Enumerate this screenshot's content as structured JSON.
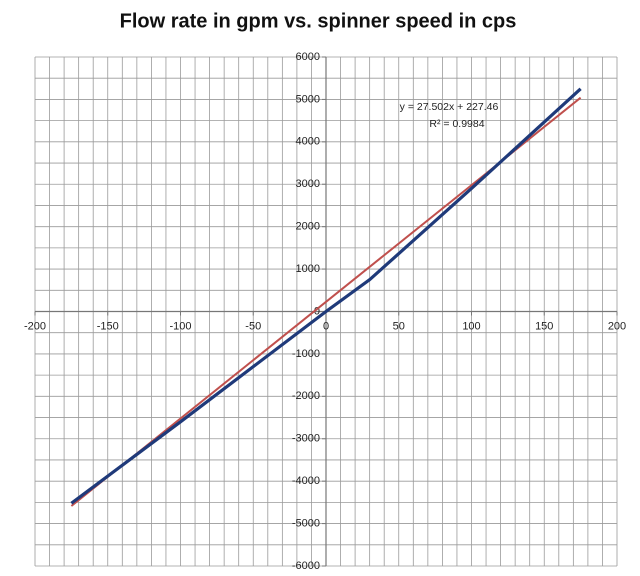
{
  "chart_data": {
    "type": "line",
    "title": "Flow rate in gpm vs. spinner speed in cps",
    "annotations": [
      "y = 27.502x + 227.46",
      "R² = 0.9984"
    ],
    "xlim": [
      -200,
      200
    ],
    "xticks": [
      -200,
      -150,
      -100,
      -50,
      0,
      50,
      100,
      150,
      200
    ],
    "ylim": [
      -6000,
      6000
    ],
    "yticks": [
      -6000,
      -5000,
      -4000,
      -3000,
      -2000,
      -1000,
      0,
      1000,
      2000,
      3000,
      4000,
      5000,
      6000
    ],
    "grid": true,
    "x_minor_step": 10,
    "y_minor_step": 500,
    "series": [
      {
        "color": "#c0504d",
        "x": [
          -175,
          175
        ],
        "values": [
          -4585.39,
          5040.31
        ]
      },
      {
        "color": "#1f3a7a",
        "x": [
          -175,
          -100,
          -50,
          0,
          30,
          100,
          175
        ],
        "values": [
          -4520,
          -2600,
          -1300,
          0,
          750,
          2900,
          5250
        ]
      }
    ]
  }
}
